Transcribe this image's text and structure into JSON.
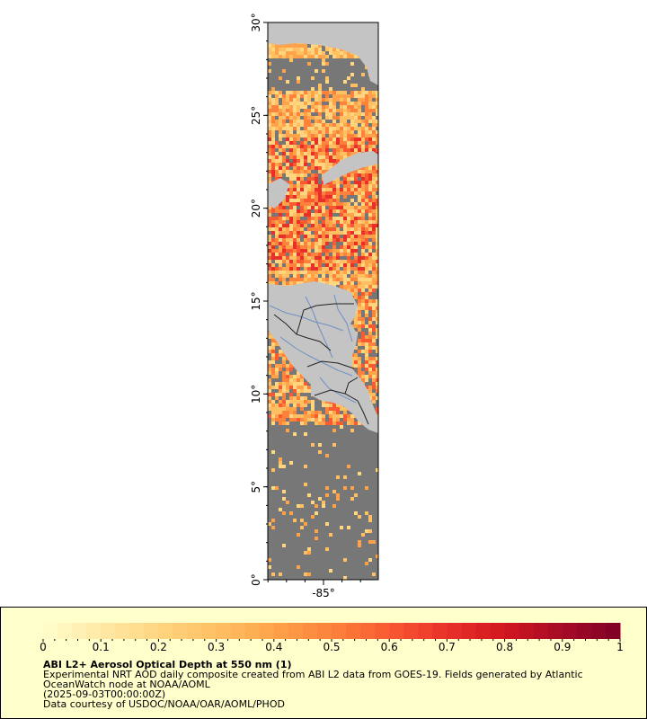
{
  "map": {
    "lat_labels": [
      "0°",
      "5°",
      "10°",
      "15°",
      "20°",
      "25°",
      "30°"
    ],
    "lon_labels": [
      "-85°"
    ],
    "colors": {
      "ocean": "#777777",
      "land": "#c4c4c4",
      "rivers": "#6f8fc2",
      "borders": "#222222"
    }
  },
  "legend": {
    "ticks": [
      "0",
      "0.1",
      "0.2",
      "0.3",
      "0.4",
      "0.5",
      "0.6",
      "0.7",
      "0.8",
      "0.9",
      "1"
    ],
    "colors": [
      "#ffffcc",
      "#ffe9a6",
      "#ffd580",
      "#ffbf63",
      "#fea34a",
      "#fd823c",
      "#f95a32",
      "#e8302a",
      "#d1171f",
      "#a60a26",
      "#7f0026"
    ],
    "title": "ABI L2+ Aerosol Optical Depth at 550 nm (1)",
    "desc_line1": "Experimental NRT AOD daily composite created from ABI L2 data from GOES-19. Fields generated by Atlantic",
    "desc_line2": "OceanWatch node at NOAA/AOML",
    "date": "(2025-09-03T00:00:00Z)",
    "credit": "Data courtesy of USDOC/NOAA/OAR/AOML/PHOD"
  }
}
